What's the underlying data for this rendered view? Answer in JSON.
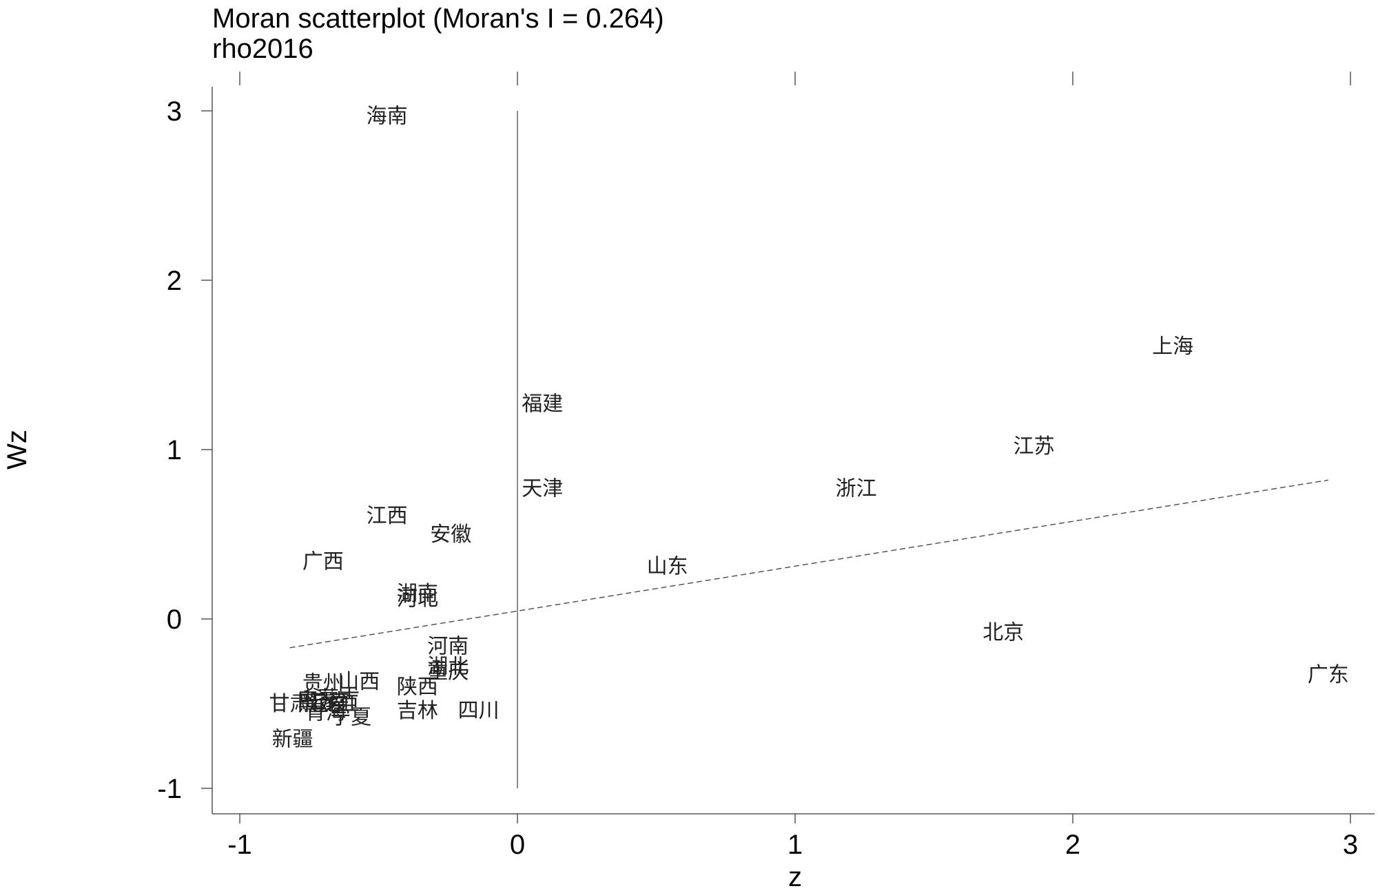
{
  "chart_data": {
    "type": "scatter",
    "title": "Moran scatterplot (Moran's I = 0.264)",
    "subtitle": "rho2016",
    "xlabel": "z",
    "ylabel": "Wz",
    "xlim": [
      -1.1,
      3.05
    ],
    "ylim": [
      -1.15,
      3.15
    ],
    "xticks": [
      -1,
      0,
      1,
      2,
      3
    ],
    "yticks": [
      -1,
      0,
      1,
      2,
      3
    ],
    "x_tick_labels": [
      "-1",
      "0",
      "1",
      "2",
      "3"
    ],
    "y_tick_labels": [
      "-1",
      "0",
      "1",
      "2",
      "3"
    ],
    "reference_line_x": 0,
    "fit_line": {
      "x": [
        -0.82,
        2.92
      ],
      "y": [
        -0.17,
        0.82
      ]
    },
    "points": [
      {
        "label": "海南",
        "x": -0.47,
        "y": 2.97
      },
      {
        "label": "上海",
        "x": 2.36,
        "y": 1.61
      },
      {
        "label": "福建",
        "x": 0.09,
        "y": 1.27
      },
      {
        "label": "江苏",
        "x": 1.86,
        "y": 1.02
      },
      {
        "label": "天津",
        "x": 0.09,
        "y": 0.77
      },
      {
        "label": "浙江",
        "x": 1.22,
        "y": 0.77
      },
      {
        "label": "江西",
        "x": -0.47,
        "y": 0.61
      },
      {
        "label": "安徽",
        "x": -0.24,
        "y": 0.5
      },
      {
        "label": "广西",
        "x": -0.7,
        "y": 0.34
      },
      {
        "label": "山东",
        "x": 0.54,
        "y": 0.31
      },
      {
        "label": "湖南",
        "x": -0.36,
        "y": 0.15
      },
      {
        "label": "河北",
        "x": -0.36,
        "y": 0.12
      },
      {
        "label": "北京",
        "x": 1.75,
        "y": -0.08
      },
      {
        "label": "河南",
        "x": -0.25,
        "y": -0.16
      },
      {
        "label": "湖北",
        "x": -0.25,
        "y": -0.28
      },
      {
        "label": "重庆",
        "x": -0.25,
        "y": -0.31
      },
      {
        "label": "广东",
        "x": 2.92,
        "y": -0.33
      },
      {
        "label": "贵州",
        "x": -0.7,
        "y": -0.38
      },
      {
        "label": "山西",
        "x": -0.57,
        "y": -0.37
      },
      {
        "label": "陕西",
        "x": -0.36,
        "y": -0.4
      },
      {
        "label": "内蒙古",
        "x": -0.68,
        "y": -0.47
      },
      {
        "label": "云南",
        "x": -0.68,
        "y": -0.49
      },
      {
        "label": "黑龙江",
        "x": -0.68,
        "y": -0.5
      },
      {
        "label": "辽宁",
        "x": -0.68,
        "y": -0.5
      },
      {
        "label": "甘肃",
        "x": -0.82,
        "y": -0.5
      },
      {
        "label": "宁夏",
        "x": -0.6,
        "y": -0.58
      },
      {
        "label": "青海",
        "x": -0.69,
        "y": -0.55
      },
      {
        "label": "吉林",
        "x": -0.36,
        "y": -0.54
      },
      {
        "label": "四川",
        "x": -0.14,
        "y": -0.54
      },
      {
        "label": "新疆",
        "x": -0.81,
        "y": -0.71
      }
    ]
  }
}
